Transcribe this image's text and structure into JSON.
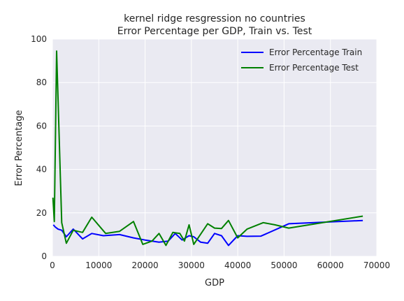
{
  "chart_data": {
    "type": "line",
    "title_lines": [
      "kernel ridge resgression no countries",
      "Error Percentage per GDP, Train vs. Test"
    ],
    "xlabel": "GDP",
    "ylabel": "Error Percentage",
    "xlim": [
      0,
      70000
    ],
    "ylim": [
      0,
      100
    ],
    "xticks": [
      0,
      10000,
      20000,
      30000,
      40000,
      50000,
      60000,
      70000
    ],
    "yticks": [
      0,
      20,
      40,
      60,
      80,
      100
    ],
    "grid": true,
    "legend_position": "top-right",
    "series": [
      {
        "name": "Error Percentage Train",
        "color": "#0000ff",
        "points": [
          [
            200,
            14.5
          ],
          [
            600,
            13.5
          ],
          [
            1200,
            12.5
          ],
          [
            2000,
            12.0
          ],
          [
            3000,
            9.0
          ],
          [
            4500,
            12.5
          ],
          [
            6500,
            8.0
          ],
          [
            8500,
            10.5
          ],
          [
            11000,
            9.5
          ],
          [
            14500,
            10.0
          ],
          [
            17500,
            8.5
          ],
          [
            20000,
            7.5
          ],
          [
            23000,
            6.5
          ],
          [
            25000,
            7.0
          ],
          [
            26500,
            10.5
          ],
          [
            28000,
            7.5
          ],
          [
            29500,
            9.5
          ],
          [
            30500,
            9.0
          ],
          [
            32000,
            6.5
          ],
          [
            33500,
            6.0
          ],
          [
            35000,
            10.5
          ],
          [
            36500,
            9.5
          ],
          [
            38000,
            5.0
          ],
          [
            40000,
            9.5
          ],
          [
            42000,
            9.2
          ],
          [
            45000,
            9.3
          ],
          [
            51000,
            15.0
          ],
          [
            67000,
            16.5
          ]
        ]
      },
      {
        "name": "Error Percentage Test",
        "color": "#008000",
        "points": [
          [
            100,
            27.0
          ],
          [
            400,
            16.0
          ],
          [
            900,
            94.5
          ],
          [
            2000,
            15.5
          ],
          [
            3000,
            6.0
          ],
          [
            4500,
            12.0
          ],
          [
            6500,
            11.0
          ],
          [
            8500,
            18.0
          ],
          [
            11500,
            10.5
          ],
          [
            14500,
            11.5
          ],
          [
            17500,
            16.0
          ],
          [
            19500,
            5.5
          ],
          [
            21500,
            7.0
          ],
          [
            23000,
            10.5
          ],
          [
            24500,
            5.0
          ],
          [
            26000,
            11.0
          ],
          [
            27500,
            10.5
          ],
          [
            28500,
            7.0
          ],
          [
            29500,
            14.5
          ],
          [
            30500,
            5.5
          ],
          [
            33500,
            15.0
          ],
          [
            35000,
            13.0
          ],
          [
            36500,
            12.8
          ],
          [
            38000,
            16.5
          ],
          [
            40000,
            8.5
          ],
          [
            42000,
            12.5
          ],
          [
            45500,
            15.5
          ],
          [
            48000,
            14.5
          ],
          [
            51000,
            13.0
          ],
          [
            67000,
            18.5
          ]
        ]
      }
    ]
  }
}
